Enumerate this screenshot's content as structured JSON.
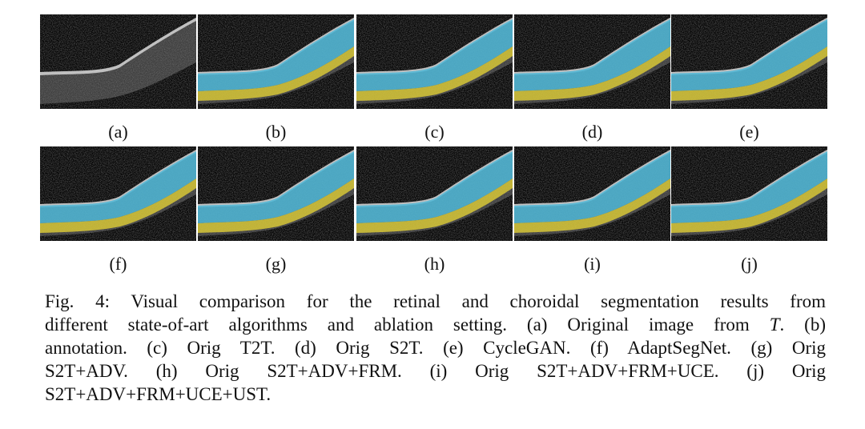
{
  "figure": {
    "panels": [
      "(a)",
      "(b)",
      "(c)",
      "(d)",
      "(e)",
      "(f)",
      "(g)",
      "(h)",
      "(i)",
      "(j)"
    ],
    "caption": {
      "lines": [
        "Fig. 4: Visual comparison for the retinal and choroidal segmentation results from",
        "different state-of-art algorithms and ablation setting. (a) Original image from ",
        "annotation. (c) Orig T2T. (d) Orig S2T. (e) CycleGAN. (f) AdaptSegNet. (g) Orig",
        "S2T+ADV. (h) Orig S2T+ADV+FRM. (i) Orig S2T+ADV+FRM+UCE. (j) Orig",
        "S2T+ADV+FRM+UCE+UST."
      ],
      "italic": "T",
      "line2_end": ". (b)"
    }
  }
}
